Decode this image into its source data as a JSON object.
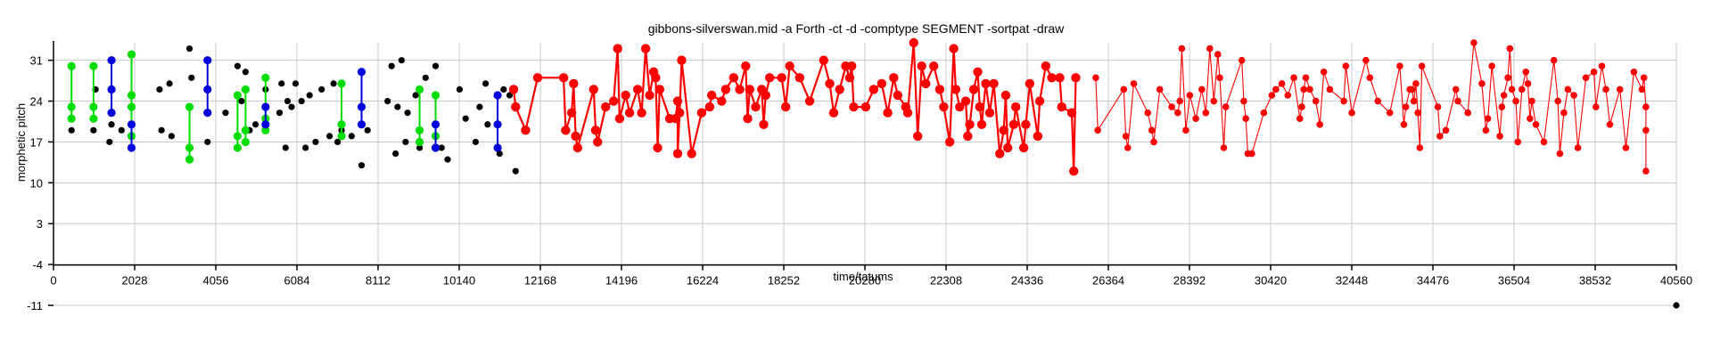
{
  "chart_data": {
    "type": "scatter",
    "title": "gibbons-silverswan.mid  -a Forth -ct -d -comptype SEGMENT -sortpat -draw",
    "xlabel": "time/tatums",
    "ylabel": "morphetic pitch",
    "xlim": [
      0,
      40560
    ],
    "ylim": [
      -11,
      34
    ],
    "x_ticks": [
      "0",
      "2028",
      "4056",
      "6084",
      "8112",
      "10140",
      "12168",
      "14196",
      "16224",
      "18252",
      "20280",
      "22308",
      "24336",
      "26364",
      "28392",
      "30420",
      "32448",
      "34476",
      "36504",
      "38532",
      "40560"
    ],
    "y_ticks": [
      "31",
      "24",
      "17",
      "10",
      "3",
      "-4",
      "-11"
    ],
    "grid": true,
    "colors": {
      "black": "#000000",
      "green": "#00dd00",
      "blue": "#0000dd",
      "red": "#ff0000"
    },
    "black_points": [
      [
        450,
        19
      ],
      [
        1000,
        19
      ],
      [
        1050,
        26
      ],
      [
        1400,
        17
      ],
      [
        1450,
        20
      ],
      [
        1700,
        19
      ],
      [
        2650,
        26
      ],
      [
        2700,
        19
      ],
      [
        2900,
        27
      ],
      [
        2950,
        18
      ],
      [
        3400,
        33
      ],
      [
        3450,
        28
      ],
      [
        3850,
        17
      ],
      [
        4300,
        22
      ],
      [
        4600,
        30
      ],
      [
        4700,
        24
      ],
      [
        4800,
        29
      ],
      [
        4900,
        19
      ],
      [
        5050,
        20
      ],
      [
        5300,
        26
      ],
      [
        5650,
        22
      ],
      [
        5700,
        27
      ],
      [
        5800,
        16
      ],
      [
        5850,
        24
      ],
      [
        5950,
        23
      ],
      [
        6050,
        27
      ],
      [
        6200,
        24
      ],
      [
        6300,
        16
      ],
      [
        6400,
        25
      ],
      [
        6550,
        17
      ],
      [
        6700,
        26
      ],
      [
        6900,
        18
      ],
      [
        7000,
        27
      ],
      [
        7100,
        17
      ],
      [
        7200,
        19
      ],
      [
        7450,
        18
      ],
      [
        7700,
        13
      ],
      [
        7850,
        19
      ],
      [
        8350,
        24
      ],
      [
        8450,
        30
      ],
      [
        8550,
        15
      ],
      [
        8600,
        23
      ],
      [
        8700,
        31
      ],
      [
        8800,
        17
      ],
      [
        8850,
        22
      ],
      [
        9050,
        25
      ],
      [
        9150,
        16
      ],
      [
        9300,
        28
      ],
      [
        9550,
        30
      ],
      [
        9700,
        16
      ],
      [
        9850,
        14
      ],
      [
        10150,
        26
      ],
      [
        10300,
        21
      ],
      [
        10550,
        17
      ],
      [
        10650,
        23
      ],
      [
        10800,
        27
      ],
      [
        10850,
        20
      ],
      [
        11150,
        15
      ],
      [
        11250,
        26
      ],
      [
        11400,
        25
      ],
      [
        11550,
        12
      ],
      [
        40560,
        -11
      ]
    ],
    "green_groups": [
      [
        [
          450,
          30
        ],
        [
          450,
          23
        ],
        [
          450,
          21
        ]
      ],
      [
        [
          1000,
          30
        ],
        [
          1000,
          23
        ],
        [
          1000,
          21
        ]
      ],
      [
        [
          1950,
          32
        ],
        [
          1950,
          25
        ],
        [
          1950,
          23
        ],
        [
          1950,
          18
        ]
      ],
      [
        [
          3400,
          23
        ],
        [
          3400,
          16
        ],
        [
          3400,
          14
        ]
      ],
      [
        [
          4600,
          25
        ],
        [
          4600,
          18
        ],
        [
          4600,
          16
        ]
      ],
      [
        [
          4800,
          26
        ],
        [
          4800,
          19
        ],
        [
          4800,
          17
        ]
      ],
      [
        [
          5300,
          28
        ],
        [
          5300,
          21
        ],
        [
          5300,
          19
        ]
      ],
      [
        [
          7200,
          27
        ],
        [
          7200,
          20
        ],
        [
          7200,
          18
        ]
      ],
      [
        [
          9150,
          26
        ],
        [
          9150,
          19
        ],
        [
          9150,
          17
        ]
      ],
      [
        [
          9550,
          25
        ],
        [
          9550,
          18
        ],
        [
          9550,
          16
        ]
      ]
    ],
    "blue_groups": [
      [
        [
          1450,
          31
        ],
        [
          1450,
          26
        ],
        [
          1450,
          22
        ]
      ],
      [
        [
          1950,
          20
        ],
        [
          1950,
          16
        ]
      ],
      [
        [
          3850,
          31
        ],
        [
          3850,
          26
        ],
        [
          3850,
          22
        ]
      ],
      [
        [
          5300,
          23
        ],
        [
          5300,
          20
        ]
      ],
      [
        [
          7700,
          29
        ],
        [
          7700,
          23
        ],
        [
          7700,
          20
        ]
      ],
      [
        [
          9550,
          20
        ],
        [
          9550,
          16
        ]
      ],
      [
        [
          11100,
          25
        ],
        [
          11100,
          20
        ],
        [
          11100,
          16
        ]
      ]
    ],
    "red_thick": [
      [
        11500,
        26
      ],
      [
        11550,
        23
      ],
      [
        11800,
        19
      ],
      [
        12100,
        28
      ],
      [
        12750,
        28
      ],
      [
        12800,
        19
      ],
      [
        12950,
        22
      ],
      [
        13000,
        27
      ],
      [
        13050,
        18
      ],
      [
        13100,
        16
      ],
      [
        13500,
        26
      ],
      [
        13550,
        19
      ],
      [
        13600,
        17
      ],
      [
        13800,
        23
      ],
      [
        14000,
        24
      ],
      [
        14100,
        33
      ],
      [
        14150,
        21
      ],
      [
        14300,
        25
      ],
      [
        14400,
        22
      ],
      [
        14600,
        26
      ],
      [
        14700,
        22
      ],
      [
        14800,
        33
      ],
      [
        14900,
        25
      ],
      [
        15000,
        29
      ],
      [
        15050,
        28
      ],
      [
        15100,
        16
      ],
      [
        15150,
        26
      ],
      [
        15400,
        21
      ],
      [
        15550,
        21
      ],
      [
        15600,
        24
      ],
      [
        15600,
        15
      ],
      [
        15650,
        22
      ],
      [
        15700,
        31
      ],
      [
        15950,
        15
      ],
      [
        16200,
        22
      ],
      [
        16400,
        23
      ],
      [
        16450,
        25
      ],
      [
        16700,
        24
      ],
      [
        16800,
        26
      ],
      [
        17000,
        28
      ],
      [
        17150,
        26
      ],
      [
        17300,
        30
      ],
      [
        17350,
        21
      ],
      [
        17400,
        26
      ],
      [
        17550,
        23
      ],
      [
        17700,
        26
      ],
      [
        17750,
        20
      ],
      [
        17800,
        25
      ],
      [
        17900,
        28
      ],
      [
        18200,
        28
      ],
      [
        18300,
        23
      ],
      [
        18400,
        30
      ],
      [
        18650,
        28
      ],
      [
        18900,
        24
      ],
      [
        19250,
        31
      ],
      [
        19400,
        27
      ],
      [
        19500,
        22
      ],
      [
        19650,
        26
      ],
      [
        19800,
        30
      ],
      [
        19900,
        28
      ],
      [
        19950,
        30
      ],
      [
        20000,
        23
      ],
      [
        20300,
        23
      ],
      [
        20500,
        26
      ],
      [
        20700,
        27
      ],
      [
        20850,
        22
      ],
      [
        21000,
        28
      ],
      [
        21100,
        25
      ],
      [
        21300,
        23
      ],
      [
        21350,
        22
      ],
      [
        21500,
        34
      ],
      [
        21600,
        18
      ],
      [
        21700,
        30
      ],
      [
        21800,
        27
      ],
      [
        22000,
        30
      ],
      [
        22150,
        26
      ],
      [
        22250,
        23
      ],
      [
        22400,
        17
      ],
      [
        22500,
        33
      ],
      [
        22550,
        26
      ],
      [
        22650,
        23
      ],
      [
        22800,
        24
      ],
      [
        22850,
        18
      ],
      [
        22900,
        20
      ],
      [
        23000,
        26
      ],
      [
        23100,
        29
      ],
      [
        23150,
        23
      ],
      [
        23200,
        20
      ],
      [
        23300,
        27
      ],
      [
        23400,
        22
      ],
      [
        23500,
        27
      ],
      [
        23650,
        15
      ],
      [
        23750,
        19
      ],
      [
        23800,
        25
      ],
      [
        23850,
        16
      ],
      [
        24000,
        20
      ],
      [
        24050,
        23
      ],
      [
        24250,
        16
      ],
      [
        24300,
        20
      ],
      [
        24400,
        27
      ],
      [
        24600,
        18
      ],
      [
        24650,
        24
      ],
      [
        24800,
        30
      ],
      [
        24950,
        28
      ],
      [
        25150,
        28
      ],
      [
        25200,
        23
      ],
      [
        25450,
        22
      ],
      [
        25500,
        12
      ],
      [
        25550,
        28
      ]
    ],
    "red_thin": [
      [
        26050,
        28
      ],
      [
        26100,
        19
      ],
      [
        26750,
        26
      ],
      [
        26800,
        18
      ],
      [
        26850,
        16
      ],
      [
        27000,
        27
      ],
      [
        27350,
        22
      ],
      [
        27450,
        19
      ],
      [
        27500,
        17
      ],
      [
        27650,
        26
      ],
      [
        27950,
        23
      ],
      [
        28100,
        22
      ],
      [
        28150,
        24
      ],
      [
        28200,
        33
      ],
      [
        28300,
        19
      ],
      [
        28400,
        25
      ],
      [
        28550,
        21
      ],
      [
        28700,
        26
      ],
      [
        28800,
        22
      ],
      [
        28900,
        33
      ],
      [
        29000,
        24
      ],
      [
        29100,
        32
      ],
      [
        29150,
        28
      ],
      [
        29250,
        16
      ],
      [
        29300,
        23
      ],
      [
        29700,
        31
      ],
      [
        29750,
        24
      ],
      [
        29800,
        21
      ],
      [
        29850,
        15
      ],
      [
        29950,
        15
      ],
      [
        30250,
        22
      ],
      [
        30450,
        25
      ],
      [
        30550,
        26
      ],
      [
        30700,
        27
      ],
      [
        30850,
        25
      ],
      [
        31000,
        28
      ],
      [
        31150,
        21
      ],
      [
        31200,
        23
      ],
      [
        31250,
        26
      ],
      [
        31300,
        28
      ],
      [
        31400,
        26
      ],
      [
        31550,
        24
      ],
      [
        31650,
        20
      ],
      [
        31750,
        29
      ],
      [
        31900,
        26
      ],
      [
        32250,
        24
      ],
      [
        32300,
        30
      ],
      [
        32450,
        22
      ],
      [
        32800,
        31
      ],
      [
        32900,
        28
      ],
      [
        33100,
        24
      ],
      [
        33400,
        22
      ],
      [
        33650,
        30
      ],
      [
        33750,
        20
      ],
      [
        33800,
        23
      ],
      [
        33900,
        26
      ],
      [
        33950,
        26
      ],
      [
        34000,
        24
      ],
      [
        34050,
        27
      ],
      [
        34100,
        22
      ],
      [
        34150,
        16
      ],
      [
        34200,
        30
      ],
      [
        34600,
        23
      ],
      [
        34650,
        18
      ],
      [
        34800,
        19
      ],
      [
        35050,
        26
      ],
      [
        35100,
        24
      ],
      [
        35350,
        22
      ],
      [
        35500,
        34
      ],
      [
        35700,
        27
      ],
      [
        35800,
        19
      ],
      [
        35850,
        21
      ],
      [
        35950,
        30
      ],
      [
        36150,
        18
      ],
      [
        36200,
        23
      ],
      [
        36250,
        25
      ],
      [
        36350,
        28
      ],
      [
        36400,
        33
      ],
      [
        36450,
        26
      ],
      [
        36550,
        24
      ],
      [
        36600,
        17
      ],
      [
        36700,
        26
      ],
      [
        36800,
        29
      ],
      [
        36850,
        27
      ],
      [
        36900,
        21
      ],
      [
        36950,
        24
      ],
      [
        37050,
        20
      ],
      [
        37250,
        17
      ],
      [
        37500,
        31
      ],
      [
        37600,
        24
      ],
      [
        37650,
        15
      ],
      [
        37750,
        22
      ],
      [
        37850,
        26
      ],
      [
        38000,
        25
      ],
      [
        38100,
        16
      ],
      [
        38300,
        28
      ],
      [
        38500,
        29
      ],
      [
        38550,
        23
      ],
      [
        38700,
        30
      ],
      [
        38800,
        26
      ],
      [
        38900,
        20
      ],
      [
        39150,
        26
      ],
      [
        39300,
        16
      ],
      [
        39500,
        29
      ],
      [
        39700,
        26
      ],
      [
        39750,
        28
      ],
      [
        39800,
        23
      ],
      [
        39800,
        19
      ],
      [
        39800,
        12
      ]
    ]
  }
}
